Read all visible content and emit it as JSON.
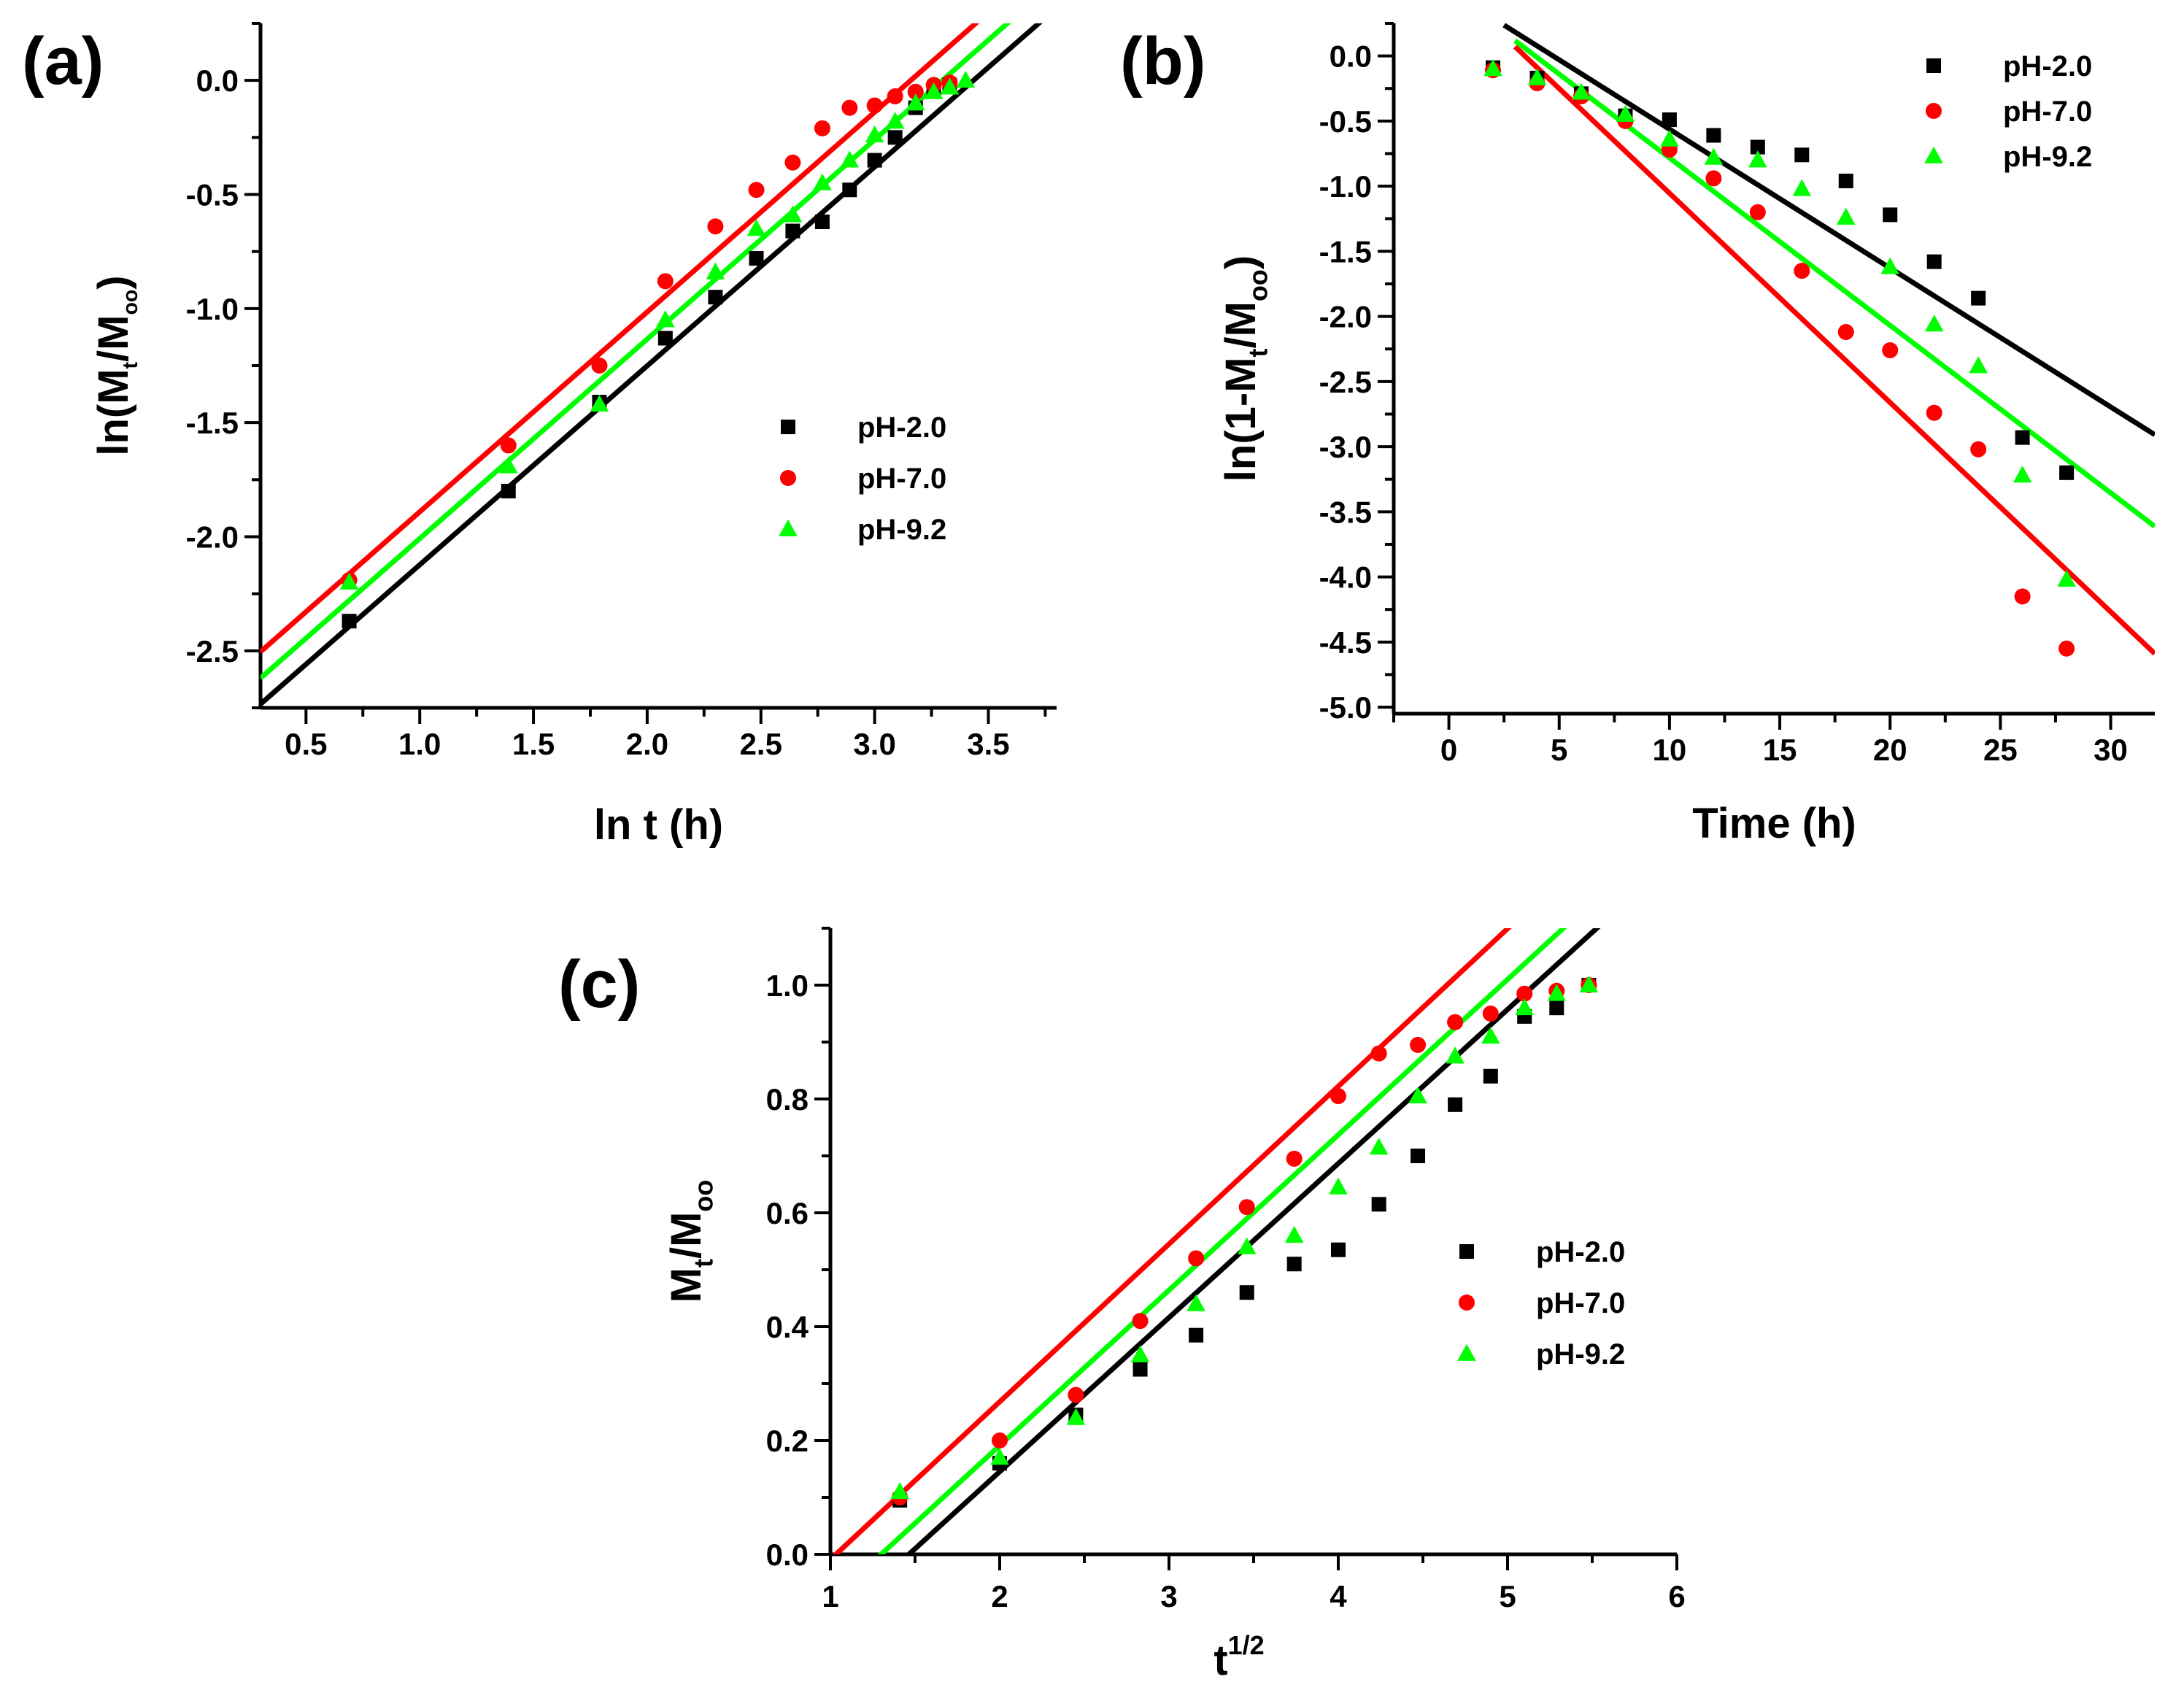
{
  "chart_data": [
    {
      "type": "scatter",
      "panel_label": "(a)",
      "title": "",
      "xlabel": "ln t (h)",
      "ylabel": {
        "prefix": "ln(M",
        "sub1": "t",
        "mid": "/M",
        "sub2": "oo",
        "suffix": ")"
      },
      "xlim": [
        0.3,
        3.8
      ],
      "ylim": [
        -2.75,
        0.25
      ],
      "xticks": [
        0.5,
        1.0,
        1.5,
        2.0,
        2.5,
        3.0,
        3.5
      ],
      "xtick_labels": [
        "0.5",
        "1.0",
        "1.5",
        "2.0",
        "2.5",
        "3.0",
        "3.5"
      ],
      "yticks": [
        0.0,
        -0.5,
        -1.0,
        -1.5,
        -2.0,
        -2.5
      ],
      "ytick_labels": [
        "0.0",
        "-0.5",
        "-1.0",
        "-1.5",
        "-2.0",
        "-2.5"
      ],
      "legend_position": "middle-right",
      "series": [
        {
          "name": "pH-2.0",
          "marker": "square",
          "color": "#000000",
          "x": [
            0.69,
            1.39,
            1.79,
            2.08,
            2.3,
            2.48,
            2.64,
            2.77,
            2.89,
            3.0,
            3.09,
            3.18,
            3.26,
            3.33
          ],
          "y": [
            -2.37,
            -1.8,
            -1.41,
            -1.13,
            -0.95,
            -0.78,
            -0.66,
            -0.62,
            -0.48,
            -0.35,
            -0.25,
            -0.12,
            -0.04,
            -0.02
          ],
          "fit": {
            "slope": 0.872,
            "intercept": -2.995
          }
        },
        {
          "name": "pH-7.0",
          "marker": "circle",
          "color": "#ff0000",
          "x": [
            0.69,
            1.39,
            1.79,
            2.08,
            2.3,
            2.48,
            2.64,
            2.77,
            2.89,
            3.0,
            3.09,
            3.18,
            3.26,
            3.33
          ],
          "y": [
            -2.19,
            -1.6,
            -1.25,
            -0.88,
            -0.64,
            -0.48,
            -0.36,
            -0.21,
            -0.12,
            -0.11,
            -0.07,
            -0.05,
            -0.02,
            -0.01
          ],
          "fit": {
            "slope": 0.876,
            "intercept": -2.767
          }
        },
        {
          "name": "pH-9.2",
          "marker": "triangle",
          "color": "#00ff00",
          "x": [
            0.69,
            1.39,
            1.79,
            2.08,
            2.3,
            2.48,
            2.64,
            2.77,
            2.89,
            3.0,
            3.09,
            3.18,
            3.26,
            3.33,
            3.4
          ],
          "y": [
            -2.2,
            -1.69,
            -1.42,
            -1.05,
            -0.84,
            -0.65,
            -0.59,
            -0.45,
            -0.35,
            -0.24,
            -0.18,
            -0.1,
            -0.05,
            -0.03,
            0.0
          ],
          "fit": {
            "slope": 0.874,
            "intercept": -2.882
          }
        }
      ]
    },
    {
      "type": "scatter",
      "panel_label": "(b)",
      "title": "",
      "xlabel": "Time (h)",
      "ylabel": {
        "prefix": "ln(1-M",
        "sub1": "t",
        "mid": "/M",
        "sub2": "oo",
        "suffix": ")"
      },
      "xlim": [
        -2.5,
        32
      ],
      "ylim": [
        -5.05,
        0.25
      ],
      "xticks": [
        0,
        5,
        10,
        15,
        20,
        25,
        30
      ],
      "xtick_labels": [
        "0",
        "5",
        "10",
        "15",
        "20",
        "25",
        "30"
      ],
      "yticks": [
        0.0,
        -0.5,
        -1.0,
        -1.5,
        -2.0,
        -2.5,
        -3.0,
        -3.5,
        -4.0,
        -4.5,
        -5.0
      ],
      "ytick_labels": [
        "0.0",
        "-0.5",
        "-1.0",
        "-1.5",
        "-2.0",
        "-2.5",
        "-3.0",
        "-3.5",
        "-4.0",
        "-4.5",
        "-5.0"
      ],
      "legend_position": "top-right",
      "series": [
        {
          "name": "pH-2.0",
          "marker": "square",
          "color": "#000000",
          "x": [
            2,
            4,
            6,
            8,
            10,
            12,
            14,
            16,
            18,
            20,
            22,
            24,
            26,
            28
          ],
          "y": [
            -0.09,
            -0.17,
            -0.29,
            -0.46,
            -0.49,
            -0.61,
            -0.7,
            -0.76,
            -0.96,
            -1.22,
            -1.58,
            -1.86,
            -2.93,
            -3.2
          ],
          "fit": {
            "slope": -0.1066,
            "intercept": 0.503
          },
          "fit_x": [
            2.5,
            32
          ]
        },
        {
          "name": "pH-7.0",
          "marker": "circle",
          "color": "#ff0000",
          "x": [
            2,
            4,
            6,
            8,
            10,
            12,
            14,
            16,
            18,
            20,
            22,
            24,
            26,
            28
          ],
          "y": [
            -0.11,
            -0.21,
            -0.31,
            -0.5,
            -0.72,
            -0.94,
            -1.2,
            -1.65,
            -2.12,
            -2.26,
            -2.74,
            -3.02,
            -4.15,
            -4.55
          ],
          "fit": {
            "slope": -0.1607,
            "intercept": 0.553
          },
          "fit_x": [
            3,
            32
          ]
        },
        {
          "name": "pH-9.2",
          "marker": "triangle",
          "color": "#00ff00",
          "x": [
            2,
            4,
            6,
            8,
            10,
            12,
            14,
            16,
            18,
            20,
            22,
            24,
            26,
            28
          ],
          "y": [
            -0.1,
            -0.17,
            -0.28,
            -0.45,
            -0.64,
            -0.78,
            -0.8,
            -1.02,
            -1.24,
            -1.62,
            -2.06,
            -2.38,
            -3.22,
            -4.02
          ],
          "fit": {
            "slope": -0.1286,
            "intercept": 0.503
          },
          "fit_x": [
            3,
            32
          ]
        }
      ]
    },
    {
      "type": "scatter",
      "panel_label": "(c)",
      "title": "",
      "xlabel": {
        "base": "t",
        "sup": "1/2"
      },
      "ylabel": {
        "prefix": "M",
        "sub1": "t",
        "mid": "/M",
        "sub2": "oo",
        "suffix": ""
      },
      "xlim": [
        1,
        6
      ],
      "ylim": [
        0.0,
        1.1
      ],
      "xticks": [
        1,
        2,
        3,
        4,
        5,
        6
      ],
      "xtick_labels": [
        "1",
        "2",
        "3",
        "4",
        "5",
        "6"
      ],
      "yticks": [
        0.0,
        0.2,
        0.4,
        0.6,
        0.8,
        1.0
      ],
      "ytick_labels": [
        "0.0",
        "0.2",
        "0.4",
        "0.6",
        "0.8",
        "1.0"
      ],
      "legend_position": "middle-right",
      "series": [
        {
          "name": "pH-2.0",
          "marker": "square",
          "color": "#000000",
          "x": [
            1.41,
            2.0,
            2.45,
            2.83,
            3.16,
            3.46,
            3.74,
            4.0,
            4.24,
            4.47,
            4.69,
            4.9,
            5.1,
            5.29,
            5.48
          ],
          "y": [
            0.095,
            0.16,
            0.245,
            0.325,
            0.385,
            0.46,
            0.51,
            0.535,
            0.615,
            0.7,
            0.79,
            0.84,
            0.945,
            0.96,
            1.0
          ],
          "fit": {
            "slope": 0.2707,
            "intercept": -0.3962
          }
        },
        {
          "name": "pH-7.0",
          "marker": "circle",
          "color": "#ff0000",
          "x": [
            1.41,
            2.0,
            2.45,
            2.83,
            3.16,
            3.46,
            3.74,
            4.0,
            4.24,
            4.47,
            4.69,
            4.9,
            5.1,
            5.29,
            5.48
          ],
          "y": [
            0.1,
            0.2,
            0.28,
            0.41,
            0.52,
            0.61,
            0.695,
            0.805,
            0.88,
            0.895,
            0.935,
            0.95,
            0.985,
            0.99,
            1.0
          ],
          "fit": {
            "slope": 0.2771,
            "intercept": -0.2862
          }
        },
        {
          "name": "pH-9.2",
          "marker": "triangle",
          "color": "#00ff00",
          "x": [
            1.41,
            2.0,
            2.45,
            2.83,
            3.16,
            3.46,
            3.74,
            4.0,
            4.24,
            4.47,
            4.69,
            4.9,
            5.1,
            5.29,
            5.48
          ],
          "y": [
            0.11,
            0.17,
            0.24,
            0.35,
            0.44,
            0.54,
            0.56,
            0.645,
            0.715,
            0.805,
            0.875,
            0.91,
            0.96,
            0.985,
            1.0
          ],
          "fit": {
            "slope": 0.273,
            "intercept": -0.3549
          }
        }
      ]
    }
  ]
}
